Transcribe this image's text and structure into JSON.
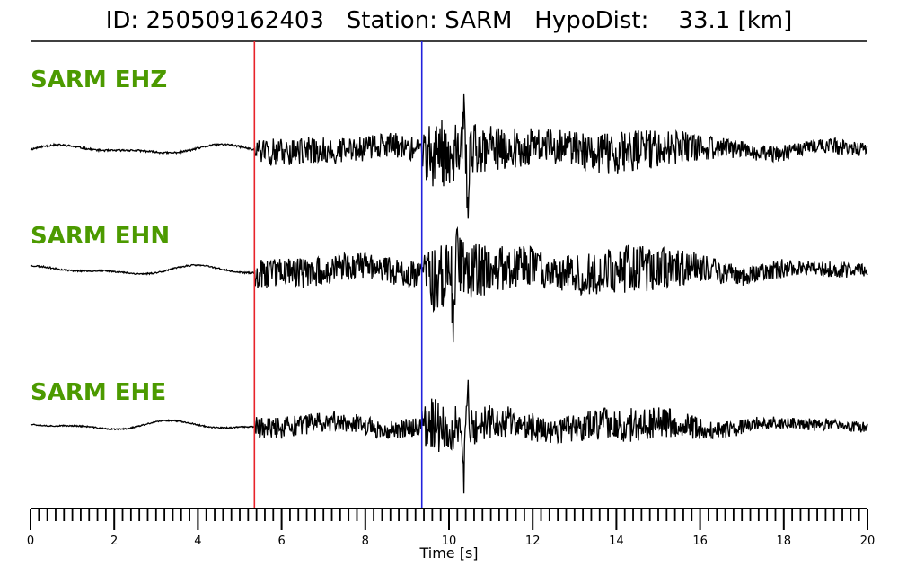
{
  "title": "ID: 250509162403   Station: SARM   HypoDist:    33.1 [km]",
  "colors": {
    "label": "#4c9a00",
    "trace": "#000000",
    "p_pick": "#e8232a",
    "s_pick": "#2222dd"
  },
  "chart_data": {
    "type": "line",
    "xlabel": "Time [s]",
    "xlim": [
      0,
      20
    ],
    "xticks": [
      0,
      2,
      4,
      6,
      8,
      10,
      12,
      14,
      16,
      18,
      20
    ],
    "minor_tick_step": 0.2,
    "picks": [
      {
        "time": 5.35,
        "color": "#e8232a"
      },
      {
        "time": 9.35,
        "color": "#2222dd"
      }
    ],
    "series": [
      {
        "name": "SARM EHZ",
        "baseline": 0.26,
        "noise_amp": 0.03,
        "signal_amp": 0.5,
        "seed": 11,
        "peak_time": 10.45,
        "peak_values": [
          -0.8,
          0.55
        ]
      },
      {
        "name": "SARM EHN",
        "baseline": 0.47,
        "noise_amp": 0.025,
        "signal_amp": 0.55,
        "seed": 23,
        "peak_time": 10.2,
        "peak_values": [
          0.9,
          -0.9
        ]
      },
      {
        "name": "SARM EHE",
        "baseline": 0.74,
        "noise_amp": 0.02,
        "signal_amp": 0.4,
        "seed": 37,
        "peak_time": 10.45,
        "peak_values": [
          0.8,
          -0.8
        ]
      }
    ]
  }
}
